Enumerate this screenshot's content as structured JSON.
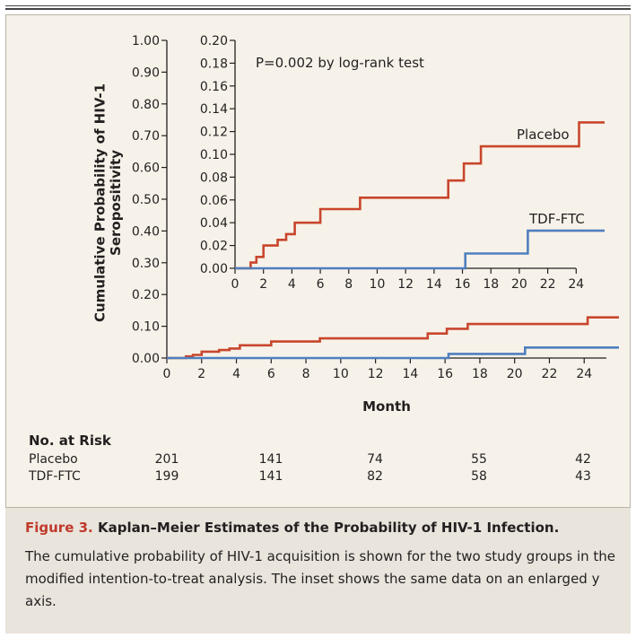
{
  "chart_data": [
    {
      "type": "line",
      "ylabel": "Cumulative Probability of HIV-1 Seropositivity",
      "xlabel": "Month",
      "xlim": [
        0,
        26
      ],
      "ylim": [
        0,
        1.0
      ],
      "x_ticks": [
        "0",
        "2",
        "4",
        "6",
        "8",
        "10",
        "12",
        "14",
        "16",
        "18",
        "20",
        "22",
        "24"
      ],
      "y_ticks": [
        "0.00",
        "0.10",
        "0.20",
        "0.30",
        "0.40",
        "0.50",
        "0.60",
        "0.70",
        "0.80",
        "0.90",
        "1.00"
      ],
      "series": [
        {
          "name": "Placebo",
          "color": "#c8462c",
          "x": [
            0,
            1.1,
            1.1,
            1.5,
            1.5,
            2,
            2,
            3,
            3,
            3.6,
            3.6,
            4.2,
            4.2,
            6,
            6,
            8.8,
            8.8,
            15,
            15,
            16.1,
            16.1,
            17.3,
            17.3,
            24.2,
            24.2,
            26
          ],
          "y": [
            0,
            0,
            0.005,
            0.005,
            0.01,
            0.01,
            0.02,
            0.02,
            0.025,
            0.025,
            0.03,
            0.03,
            0.04,
            0.04,
            0.052,
            0.052,
            0.062,
            0.062,
            0.077,
            0.077,
            0.092,
            0.092,
            0.107,
            0.107,
            0.128,
            0.128
          ]
        },
        {
          "name": "TDF-FTC",
          "color": "#4f7fbf",
          "x": [
            0,
            16.2,
            16.2,
            20.6,
            20.6,
            26
          ],
          "y": [
            0,
            0,
            0.013,
            0.013,
            0.033,
            0.033
          ]
        }
      ]
    },
    {
      "type": "line",
      "annotation": "P=0.002 by log-rank test",
      "xlim": [
        0,
        26
      ],
      "ylim": [
        0,
        0.2
      ],
      "x_ticks": [
        "0",
        "2",
        "4",
        "6",
        "8",
        "10",
        "12",
        "14",
        "16",
        "18",
        "20",
        "22",
        "24"
      ],
      "y_ticks": [
        "0.00",
        "0.02",
        "0.04",
        "0.06",
        "0.08",
        "0.10",
        "0.12",
        "0.14",
        "0.16",
        "0.18",
        "0.20"
      ],
      "series": [
        {
          "name": "Placebo",
          "color": "#c8462c"
        },
        {
          "name": "TDF-FTC",
          "color": "#4f7fbf"
        }
      ]
    }
  ],
  "risk_table": {
    "title": "No. at Risk",
    "rows": [
      {
        "label": "Placebo",
        "values": [
          "201",
          "141",
          "74",
          "55",
          "42"
        ]
      },
      {
        "label": "TDF-FTC",
        "values": [
          "199",
          "141",
          "82",
          "58",
          "43"
        ]
      }
    ]
  },
  "caption": {
    "figure_label": "Figure 3.",
    "title": "Kaplan–Meier Estimates of the Probability of HIV-1 Infection.",
    "body": "The cumulative probability of HIV-1 acquisition is shown for the two study groups in the modified intention-to-treat analysis. The inset shows the same data on an enlarged y axis."
  }
}
